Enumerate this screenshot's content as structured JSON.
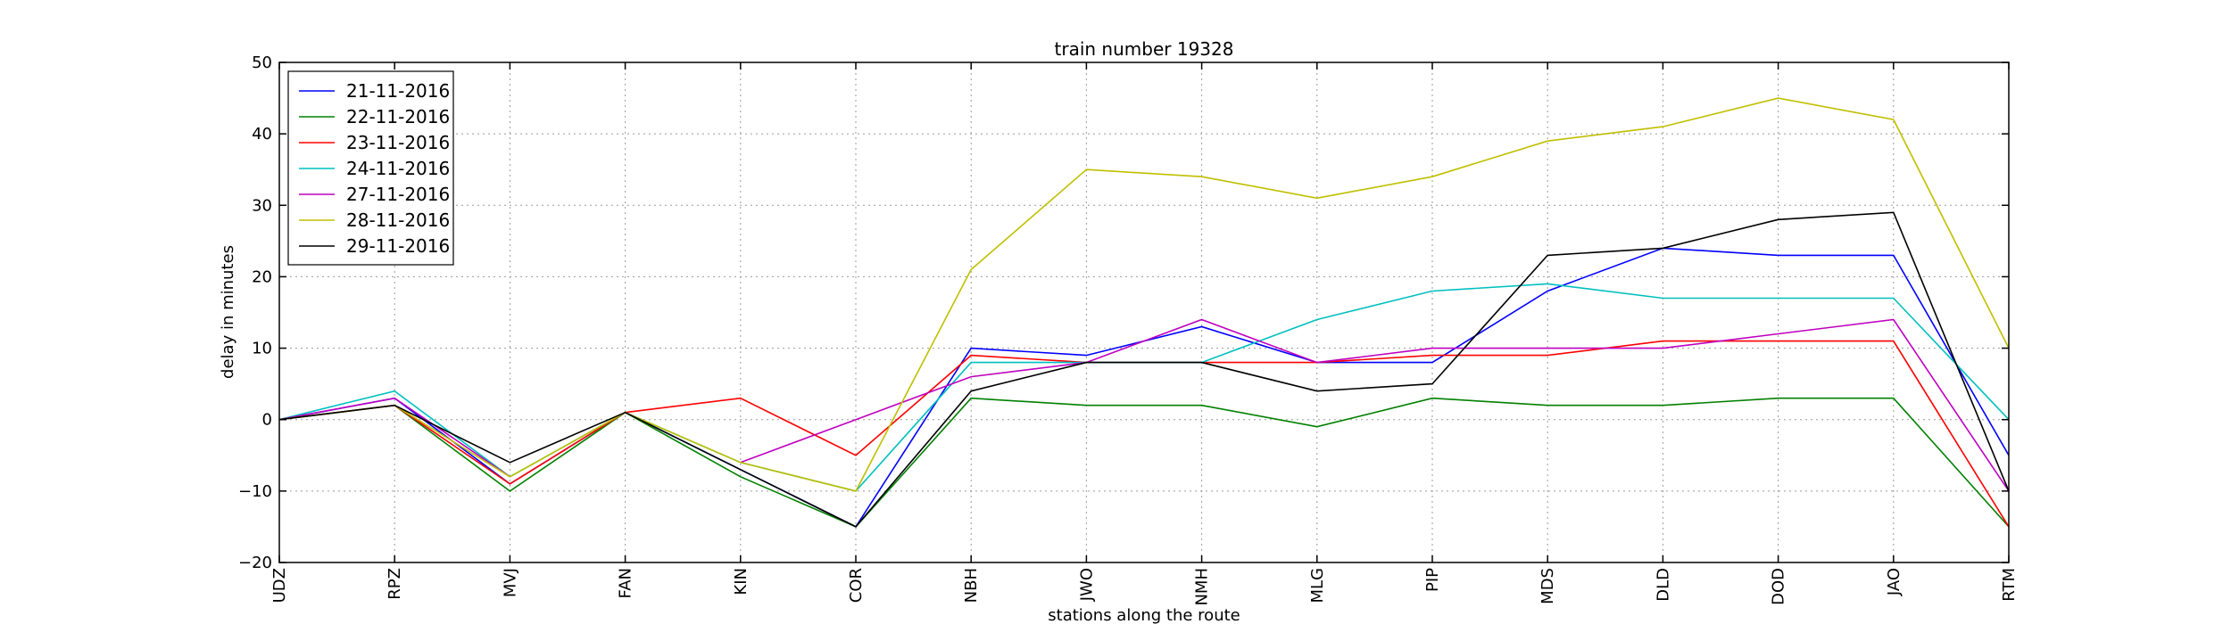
{
  "chart_data": {
    "type": "line",
    "title": "train number 19328",
    "xlabel": "stations along the route",
    "ylabel": "delay in minutes",
    "categories": [
      "UDZ",
      "RPZ",
      "MVJ",
      "FAN",
      "KIN",
      "COR",
      "NBH",
      "JWO",
      "NMH",
      "MLG",
      "PIP",
      "MDS",
      "DLD",
      "DOD",
      "JAO",
      "RTM"
    ],
    "ylim": [
      -20,
      50
    ],
    "yticks": [
      "−20",
      "−10",
      "0",
      "10",
      "20",
      "30",
      "40",
      "50"
    ],
    "grid": true,
    "legend_position": "top-left",
    "series": [
      {
        "name": "21-11-2016",
        "color": "#0000ff",
        "values": [
          0,
          3,
          -9,
          1,
          -7,
          -15,
          10,
          9,
          13,
          8,
          8,
          18,
          24,
          23,
          23,
          -5
        ]
      },
      {
        "name": "22-11-2016",
        "color": "#008000",
        "values": [
          0,
          2,
          -10,
          1,
          -8,
          -15,
          3,
          2,
          2,
          -1,
          3,
          2,
          2,
          3,
          3,
          -15
        ]
      },
      {
        "name": "23-11-2016",
        "color": "#ff0000",
        "values": [
          0,
          2,
          -9,
          1,
          3,
          -5,
          9,
          8,
          8,
          8,
          9,
          9,
          11,
          11,
          11,
          -15
        ]
      },
      {
        "name": "24-11-2016",
        "color": "#00bfbf",
        "values": [
          0,
          4,
          -8,
          1,
          -6,
          -10,
          8,
          8,
          8,
          14,
          18,
          19,
          17,
          17,
          17,
          0
        ]
      },
      {
        "name": "27-11-2016",
        "color": "#bf00bf",
        "values": [
          0,
          3,
          -8,
          null,
          -6,
          0,
          6,
          8,
          14,
          8,
          10,
          10,
          10,
          12,
          14,
          -10
        ]
      },
      {
        "name": "28-11-2016",
        "color": "#bfbf00",
        "values": [
          0,
          2,
          -8,
          1,
          -6,
          -10,
          21,
          35,
          34,
          31,
          34,
          39,
          41,
          45,
          42,
          10
        ]
      },
      {
        "name": "29-11-2016",
        "color": "#000000",
        "values": [
          0,
          2,
          -6,
          1,
          -7,
          -15,
          4,
          8,
          8,
          4,
          5,
          23,
          24,
          28,
          29,
          -10
        ]
      }
    ]
  }
}
